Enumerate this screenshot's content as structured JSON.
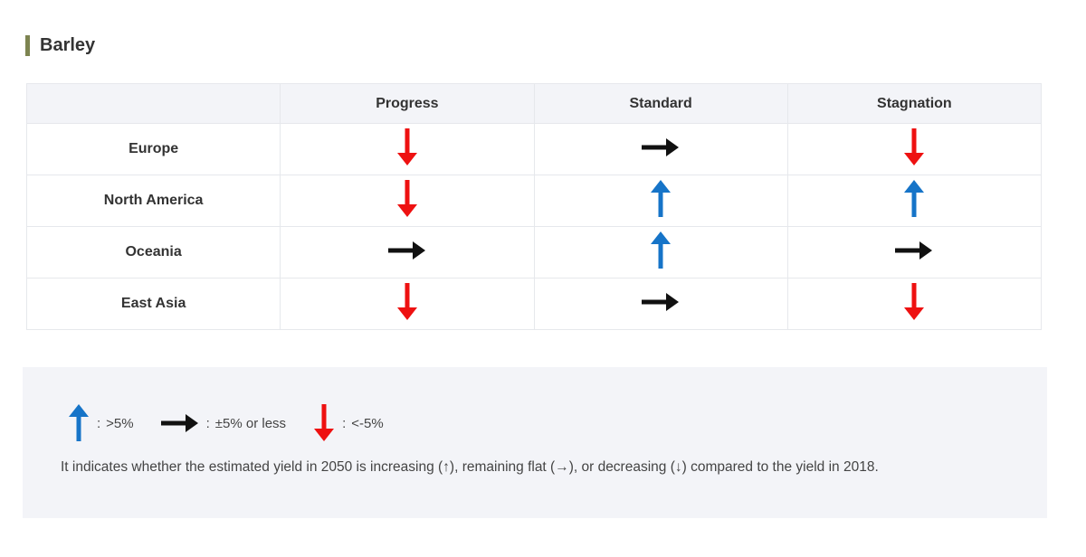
{
  "title": "Barley",
  "table": {
    "columns": [
      "",
      "Progress",
      "Standard",
      "Stagnation"
    ],
    "rows": [
      {
        "region": "Europe",
        "trends": [
          "down",
          "flat",
          "down"
        ]
      },
      {
        "region": "North America",
        "trends": [
          "down",
          "up",
          "up"
        ]
      },
      {
        "region": "Oceania",
        "trends": [
          "flat",
          "up",
          "flat"
        ]
      },
      {
        "region": "East Asia",
        "trends": [
          "down",
          "flat",
          "down"
        ]
      }
    ]
  },
  "legend": {
    "items": [
      {
        "icon": "up-arrow-icon",
        "separator": ":",
        "label": ">5%"
      },
      {
        "icon": "right-arrow-icon",
        "separator": ":",
        "label": "±5% or less"
      },
      {
        "icon": "down-arrow-icon",
        "separator": ":",
        "label": "<-5%"
      }
    ],
    "note": "It indicates whether the estimated yield in 2050 is increasing (↑), remaining flat (→), or decreasing (↓) compared to the yield in 2018."
  },
  "colors": {
    "up": "#1674c8",
    "flat": "#111111",
    "down": "#ee1111",
    "heading_accent": "#7d8450"
  }
}
